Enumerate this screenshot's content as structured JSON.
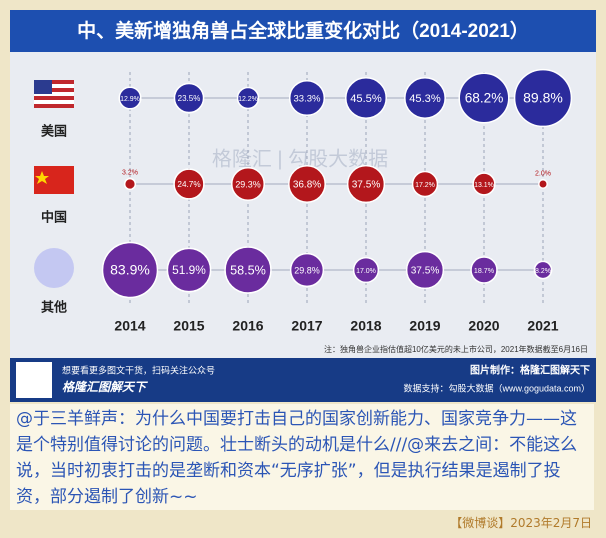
{
  "chart_data": {
    "type": "bubble",
    "title": "中、美新增独角兽占全球比重变化对比（2014-2021）",
    "categories": [
      "2014",
      "2015",
      "2016",
      "2017",
      "2018",
      "2019",
      "2020",
      "2021"
    ],
    "series": [
      {
        "name": "美国",
        "color": "#2b2b9c",
        "values": [
          12.9,
          23.5,
          12.2,
          33.3,
          45.5,
          45.3,
          68.2,
          89.8
        ],
        "value_labels": [
          "12.9%",
          "23.5%",
          "12.2%",
          "33.3%",
          "45.5%",
          "45.3%",
          "68.2%",
          "89.8%"
        ]
      },
      {
        "name": "中国",
        "color": "#b3171c",
        "values": [
          3.2,
          24.7,
          29.3,
          36.8,
          37.5,
          17.2,
          13.1,
          2.0
        ],
        "value_labels": [
          "3.2%",
          "24.7%",
          "29.3%",
          "36.8%",
          "37.5%",
          "17.2%",
          "13.1%",
          "2.0%"
        ]
      },
      {
        "name": "其他",
        "color": "#6a2c9e",
        "values": [
          83.9,
          51.9,
          58.5,
          29.8,
          17.0,
          37.5,
          18.7,
          8.2
        ],
        "value_labels": [
          "83.9%",
          "51.9%",
          "58.5%",
          "29.8%",
          "17.0%",
          "37.5%",
          "18.7%",
          "8.2%"
        ]
      }
    ],
    "note": "注：独角兽企业指估值超10亿美元的未上市公司，2021年数据截至6月16日",
    "watermark": "格隆汇 | 勾股大数据",
    "banner_left_top": "想要看更多图文干货，扫码关注公众号",
    "banner_left_bottom": "格隆汇图解天下",
    "banner_right_top": "图片制作：格隆汇图解天下",
    "banner_right_bottom": "数据支持：勾股大数据（www.gogudata.com）"
  },
  "post": {
    "text": "@于三羊鲜声：为什么中国要打击自己的国家创新能力、国家竞争力——这是个特别值得讨论的问题。壮士断头的动机是什么///@来去之间：不能这么说，当时初衷打击的是垄断和资本“无序扩张”，但是执行结果是遏制了投资，部分遏制了创新~~",
    "source": "【微博谈】2023年2月7日"
  }
}
